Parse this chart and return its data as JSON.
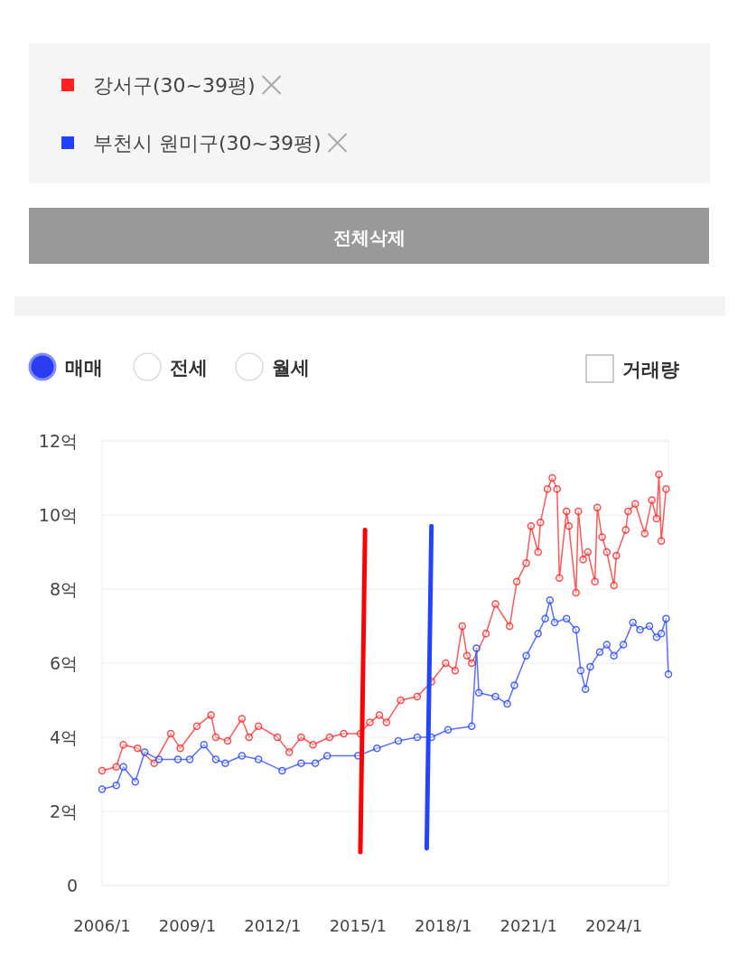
{
  "chart_data": {
    "type": "line",
    "legend": "top",
    "grid": "y",
    "marker": "circle",
    "line_style": "solid",
    "xlim": [
      "2006-01",
      "2025-12"
    ],
    "xticks": [
      {
        "value": "2006-01",
        "label": "2006/1"
      },
      {
        "value": "2009-01",
        "label": "2009/1"
      },
      {
        "value": "2012-01",
        "label": "2012/1"
      },
      {
        "value": "2015-01",
        "label": "2015/1"
      },
      {
        "value": "2018-01",
        "label": "2018/1"
      },
      {
        "value": "2021-01",
        "label": "2021/1"
      },
      {
        "value": "2024-01",
        "label": "2024/1"
      }
    ],
    "ylim": [
      0,
      12
    ],
    "yticks": [
      0,
      {
        "value": 2,
        "label": "2억"
      },
      {
        "value": 4,
        "label": "4억"
      },
      {
        "value": 6,
        "label": "6억"
      },
      {
        "value": 8,
        "label": "8억"
      },
      {
        "value": 10,
        "label": "10억"
      },
      {
        "value": 12,
        "label": "12억"
      }
    ],
    "annotations": [
      "전체삭제",
      "매매",
      "전세",
      "월세",
      "거래량"
    ],
    "series": [
      {
        "name": "강서구(30~39평)",
        "color": "#ff2020",
        "x": [
          "2006-01",
          "2006-07",
          "2006-10",
          "2007-04",
          "2007-11",
          "2008-06",
          "2008-10",
          "2009-05",
          "2009-11",
          "2010-01",
          "2010-06",
          "2010-12",
          "2011-03",
          "2011-07",
          "2012-03",
          "2012-08",
          "2013-01",
          "2013-06",
          "2014-01",
          "2014-07",
          "2015-02",
          "2015-06",
          "2015-10",
          "2016-01",
          "2016-07",
          "2017-02",
          "2017-08",
          "2018-02",
          "2018-06",
          "2018-09",
          "2018-11",
          "2019-01",
          "2019-07",
          "2019-11",
          "2020-05",
          "2020-08",
          "2020-12",
          "2021-02",
          "2021-05",
          "2021-06",
          "2021-09",
          "2021-11",
          "2022-01",
          "2022-02",
          "2022-05",
          "2022-06",
          "2022-09",
          "2022-10",
          "2022-12",
          "2023-02",
          "2023-05",
          "2023-06",
          "2023-08",
          "2023-10",
          "2024-01",
          "2024-02",
          "2024-06",
          "2024-07",
          "2024-10",
          "2025-02",
          "2025-05",
          "2025-07",
          "2025-08",
          "2025-09",
          "2025-11"
        ],
        "values": [
          3.1,
          3.2,
          3.8,
          3.7,
          3.3,
          4.1,
          3.7,
          4.3,
          4.6,
          4.0,
          3.9,
          4.5,
          4.0,
          4.3,
          4.0,
          3.6,
          4.0,
          3.8,
          4.0,
          4.1,
          4.1,
          4.4,
          4.6,
          4.4,
          5.0,
          5.1,
          5.5,
          6.0,
          5.8,
          7.0,
          6.2,
          6.0,
          6.8,
          7.6,
          7.0,
          8.2,
          8.7,
          9.7,
          9.0,
          9.8,
          10.7,
          11.0,
          10.7,
          8.3,
          10.1,
          9.7,
          7.9,
          10.1,
          8.8,
          9.0,
          8.2,
          10.2,
          9.4,
          9.0,
          8.1,
          8.9,
          9.6,
          10.1,
          10.3,
          9.5,
          10.4,
          9.9,
          11.1,
          9.3,
          10.7
        ]
      },
      {
        "name": "부천시 원미구(30~39평)",
        "color": "#2040ff",
        "x": [
          "2006-01",
          "2006-07",
          "2006-10",
          "2007-03",
          "2007-07",
          "2008-01",
          "2008-09",
          "2009-02",
          "2009-08",
          "2010-01",
          "2010-05",
          "2010-12",
          "2011-07",
          "2012-05",
          "2013-01",
          "2013-07",
          "2013-12",
          "2015-01",
          "2015-09",
          "2016-06",
          "2017-02",
          "2017-08",
          "2018-03",
          "2019-01",
          "2019-03",
          "2019-04",
          "2019-11",
          "2020-04",
          "2020-07",
          "2020-12",
          "2021-05",
          "2021-08",
          "2021-10",
          "2021-12",
          "2022-05",
          "2022-09",
          "2022-11",
          "2023-01",
          "2023-03",
          "2023-07",
          "2023-10",
          "2024-01",
          "2024-05",
          "2024-09",
          "2024-12",
          "2025-04",
          "2025-07",
          "2025-09",
          "2025-11",
          "2025-12"
        ],
        "values": [
          2.6,
          2.7,
          3.2,
          2.8,
          3.6,
          3.4,
          3.4,
          3.4,
          3.8,
          3.4,
          3.3,
          3.5,
          3.4,
          3.1,
          3.3,
          3.3,
          3.5,
          3.5,
          3.7,
          3.9,
          4.0,
          4.0,
          4.2,
          4.3,
          6.4,
          5.2,
          5.1,
          4.9,
          5.4,
          6.2,
          6.8,
          7.2,
          7.7,
          7.1,
          7.2,
          6.9,
          5.8,
          5.3,
          5.9,
          6.3,
          6.5,
          6.2,
          6.5,
          7.1,
          6.9,
          7.0,
          6.7,
          6.8,
          7.2,
          5.7
        ]
      },
      {
        "type": "line",
        "marker": "none",
        "color": "#ff0000",
        "x": [
          "2015-02",
          "2015-04"
        ],
        "values": [
          0.9,
          9.6
        ]
      },
      {
        "type": "line",
        "marker": "none",
        "color": "#2244ff",
        "x": [
          "2017-06",
          "2017-08"
        ],
        "values": [
          1.0,
          9.7
        ]
      }
    ]
  }
}
